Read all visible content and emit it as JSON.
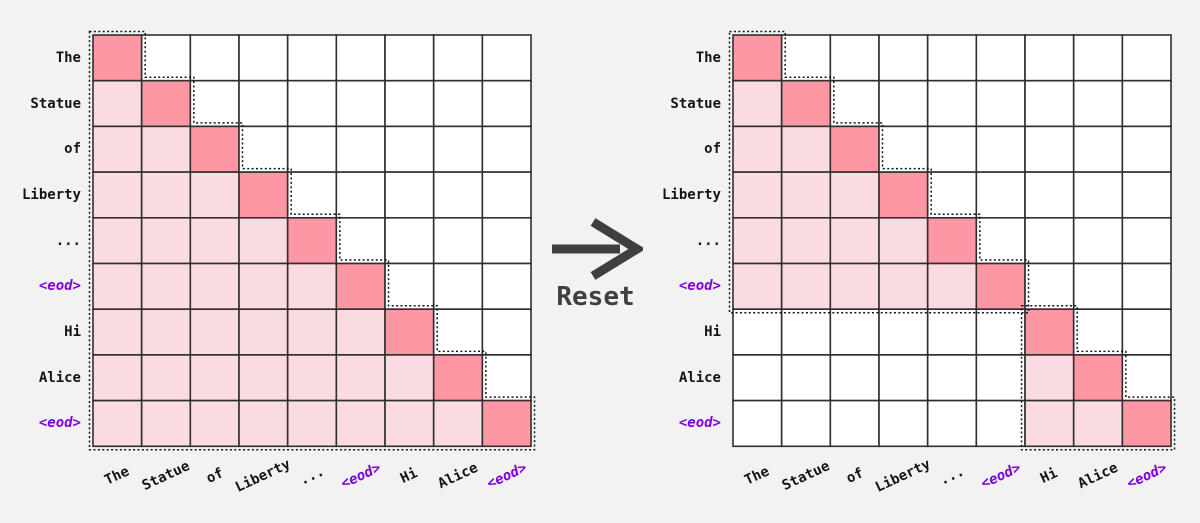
{
  "figure": {
    "background": "#f2f2f2",
    "arrow_label": "Reset"
  },
  "colors": {
    "cell_empty": "#ffffff",
    "cell_context": "#fadbe1",
    "cell_diagonal": "#fe97a4",
    "grid_line": "#2f2f2f",
    "dotted_outline": "#141414",
    "token_label": "#141414",
    "eod_label": "#7d00dd",
    "arrow": "#3f3f3f"
  },
  "tokens": [
    {
      "text": "The",
      "is_eod": false
    },
    {
      "text": "Statue",
      "is_eod": false
    },
    {
      "text": "of",
      "is_eod": false
    },
    {
      "text": "Liberty",
      "is_eod": false
    },
    {
      "text": "...",
      "is_eod": false
    },
    {
      "text": "<eod>",
      "is_eod": true
    },
    {
      "text": "Hi",
      "is_eod": false
    },
    {
      "text": "Alice",
      "is_eod": false
    },
    {
      "text": "<eod>",
      "is_eod": true
    }
  ],
  "matrices": [
    {
      "id": "left",
      "name": "causal-attention-mask",
      "blocks": [
        {
          "start": 0,
          "end": 8
        }
      ]
    },
    {
      "id": "right",
      "name": "reset-attention-mask",
      "blocks": [
        {
          "start": 0,
          "end": 5
        },
        {
          "start": 6,
          "end": 8
        }
      ]
    }
  ]
}
